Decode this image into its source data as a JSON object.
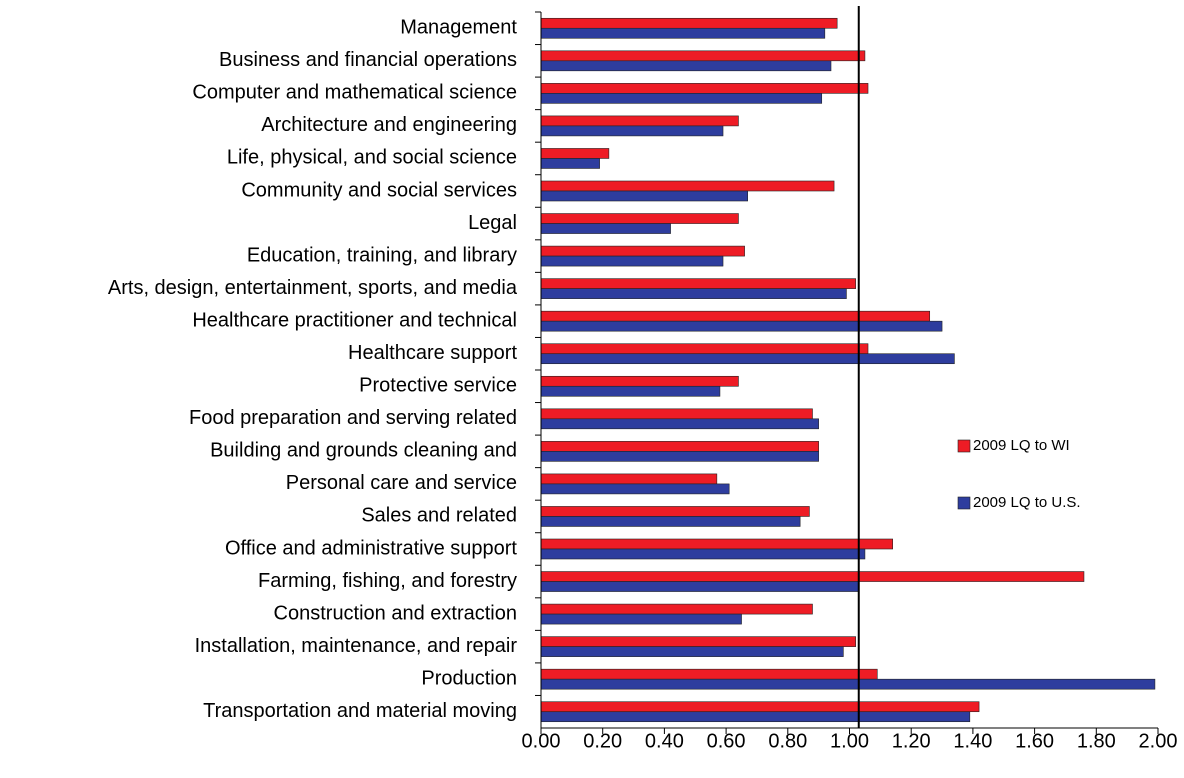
{
  "chart_data": {
    "type": "hbar",
    "categories": [
      "Management",
      "Business and financial operations",
      "Computer and mathematical science",
      "Architecture and engineering",
      "Life, physical, and social science",
      "Community and social services",
      "Legal",
      "Education, training, and library",
      "Arts, design, entertainment, sports, and media",
      "Healthcare practitioner and technical",
      "Healthcare support",
      "Protective service",
      "Food preparation and serving related",
      "Building and grounds cleaning and",
      "Personal care and service",
      "Sales and related",
      "Office and administrative support",
      "Farming, fishing, and forestry",
      "Construction and extraction",
      "Installation, maintenance, and repair",
      "Production",
      "Transportation and material moving"
    ],
    "series": [
      {
        "name": "2009 LQ to WI",
        "color": "#ee1c25",
        "values": [
          0.96,
          1.05,
          1.06,
          0.64,
          0.22,
          0.95,
          0.64,
          0.66,
          1.02,
          1.26,
          1.06,
          0.64,
          0.88,
          0.9,
          0.57,
          0.87,
          1.14,
          1.76,
          0.88,
          1.02,
          1.09,
          1.42
        ]
      },
      {
        "name": "2009 LQ to U.S.",
        "color": "#2e3d9e",
        "values": [
          0.92,
          0.94,
          0.91,
          0.59,
          0.19,
          0.67,
          0.42,
          0.59,
          0.99,
          1.3,
          1.34,
          0.58,
          0.9,
          0.9,
          0.61,
          0.84,
          1.05,
          1.03,
          0.65,
          0.98,
          1.99,
          1.39
        ]
      }
    ],
    "reference_value": 1.03,
    "xlim": [
      0,
      2
    ],
    "xticks": [
      {
        "value": 0,
        "label": "0.00"
      },
      {
        "value": 0.2,
        "label": "0.20"
      },
      {
        "value": 0.4,
        "label": "0.40"
      },
      {
        "value": 0.6,
        "label": "0.60"
      },
      {
        "value": 0.8,
        "label": "0.80"
      },
      {
        "value": 1,
        "label": "1.00"
      },
      {
        "value": 1.2,
        "label": "1.20"
      },
      {
        "value": 1.4,
        "label": "1.40"
      },
      {
        "value": 1.6,
        "label": "1.60"
      },
      {
        "value": 1.8,
        "label": "1.80"
      },
      {
        "value": 2,
        "label": "2.00"
      }
    ],
    "legend": "right"
  }
}
